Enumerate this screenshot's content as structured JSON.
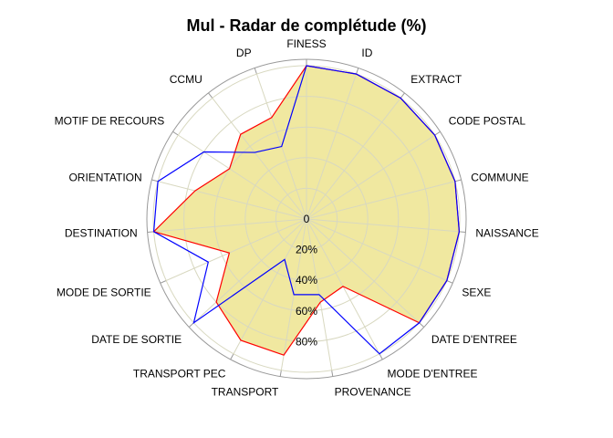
{
  "chart_data": {
    "type": "radar",
    "title": "Mul - Radar de complétude (%)",
    "axes": [
      "FINESS",
      "ID",
      "EXTRACT",
      "CODE POSTAL",
      "COMMUNE",
      "NAISSANCE",
      "SEXE",
      "DATE D'ENTREE",
      "MODE D'ENTREE",
      "PROVENANCE",
      "TRANSPORT",
      "TRANSPORT PEC",
      "DATE DE SORTIE",
      "MODE DE SORTIE",
      "DESTINATION",
      "ORIENTATION",
      "MOTIF DE RECOURS",
      "CCMU",
      "DP"
    ],
    "radial_ticks": [
      "0",
      "20%",
      "40%",
      "60%",
      "80%"
    ],
    "radial_tick_values": [
      0,
      20,
      40,
      60,
      80
    ],
    "rlim": [
      0,
      100
    ],
    "series": [
      {
        "values": [
          100,
          100,
          100,
          100,
          100,
          100,
          100,
          100,
          50,
          55,
          90,
          90,
          80,
          55,
          100,
          75,
          60,
          70,
          70
        ],
        "color": "#ff0000",
        "fill": "#f0e8a0"
      },
      {
        "values": [
          100,
          100,
          100,
          100,
          100,
          100,
          100,
          100,
          100,
          50,
          50,
          30,
          100,
          70,
          100,
          100,
          80,
          55,
          50
        ],
        "color": "#0000ff",
        "fill": "none"
      }
    ],
    "grid": true
  },
  "colors": {
    "grid": "#d8d8c0",
    "outer_ring": "#999999",
    "fill": "#f0e8a0"
  }
}
